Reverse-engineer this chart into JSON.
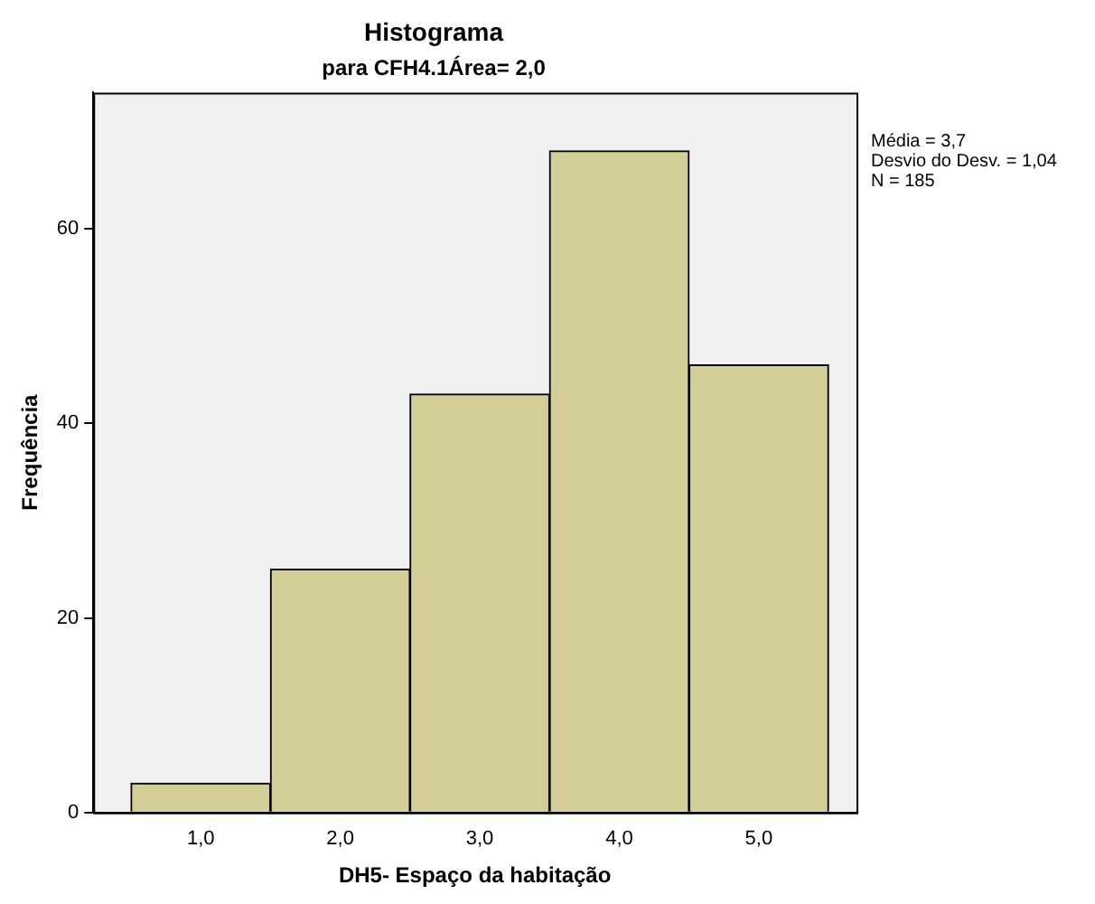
{
  "chart_data": {
    "type": "histogram",
    "title": "Histograma",
    "subtitle": "para CFH4.1Área= 2,0",
    "xlabel": "DH5- Espaço da habitação",
    "ylabel": "Frequência",
    "bins": [
      0.5,
      1.5,
      2.5,
      3.5,
      4.5,
      5.5
    ],
    "values": [
      3,
      25,
      43,
      68,
      46
    ],
    "color": "#d3ce97",
    "xlim": [
      0.23,
      5.7
    ],
    "xticks": [
      {
        "value": 1,
        "label": "1,0"
      },
      {
        "value": 2,
        "label": "2,0"
      },
      {
        "value": 3,
        "label": "3,0"
      },
      {
        "value": 4,
        "label": "4,0"
      },
      {
        "value": 5,
        "label": "5,0"
      }
    ],
    "ylim": [
      0,
      74
    ],
    "yticks": [
      0,
      20,
      40,
      60
    ],
    "grid": false,
    "legend": false,
    "annotations": [
      "Média = 3,7",
      "Desvio do Desv. = 1,04",
      "N = 185"
    ]
  }
}
